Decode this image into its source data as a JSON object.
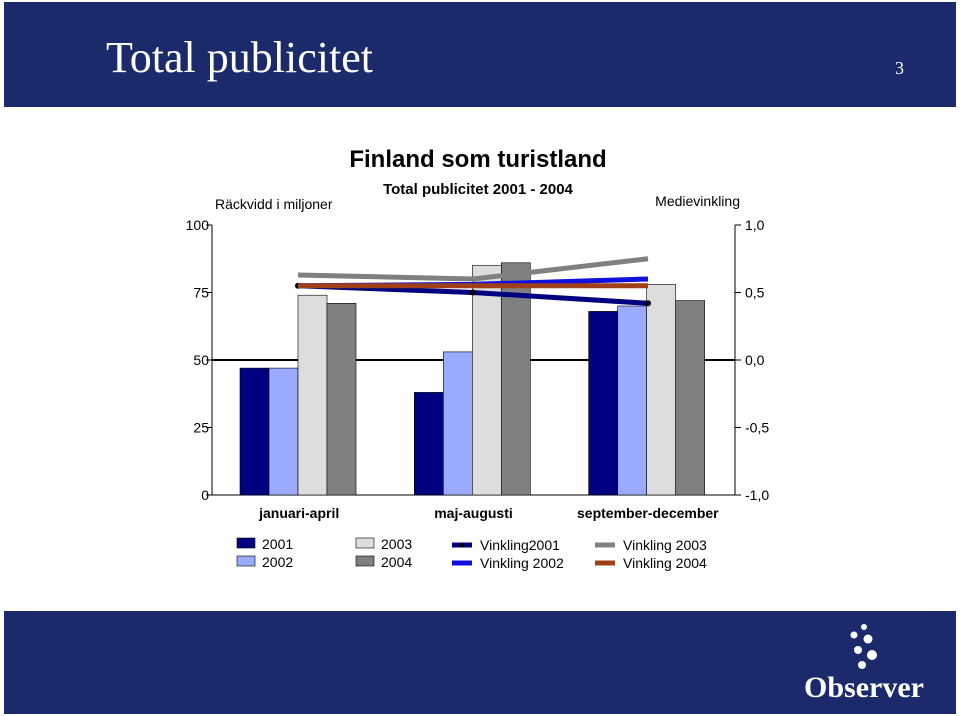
{
  "slide": {
    "title": "Total publicitet",
    "page_number": "3",
    "logo": "Observer"
  },
  "chart_data": {
    "type": "bar",
    "title": "Finland som turistland",
    "subtitle": "Total publicitet 2001 - 2004",
    "ylabel": "Räckvidd i miljoner",
    "y2label": "Medievinkling",
    "categories": [
      "januari-april",
      "maj-augusti",
      "september-december"
    ],
    "ylim": [
      0,
      100
    ],
    "yticks": [
      "0",
      "25",
      "50",
      "75",
      "100"
    ],
    "y2lim": [
      -1,
      1
    ],
    "y2ticks": [
      "-1,0",
      "-0,5",
      "0,0",
      "0,5",
      "1,0"
    ],
    "series": [
      {
        "name": "2001",
        "color": "#000080",
        "values": [
          47,
          38,
          68
        ]
      },
      {
        "name": "2002",
        "color": "#99aaff",
        "values": [
          47,
          53,
          70
        ]
      },
      {
        "name": "2003",
        "color": "#dddddd",
        "values": [
          74,
          85,
          78
        ]
      },
      {
        "name": "2004",
        "color": "#808080",
        "values": [
          71,
          86,
          72
        ]
      }
    ],
    "lines": [
      {
        "name": "Vinkling2001",
        "color": "#000080",
        "values": [
          0.55,
          0.5,
          0.42
        ]
      },
      {
        "name": "Vinkling 2002",
        "color": "#1010e0",
        "values": [
          0.55,
          0.56,
          0.6
        ]
      },
      {
        "name": "Vinkling 2003",
        "color": "#808080",
        "values": [
          0.63,
          0.6,
          0.75
        ]
      },
      {
        "name": "Vinkling 2004",
        "color": "#a0401a",
        "values": [
          0.55,
          0.55,
          0.55
        ]
      }
    ],
    "legend": "bottom",
    "grid": false
  }
}
